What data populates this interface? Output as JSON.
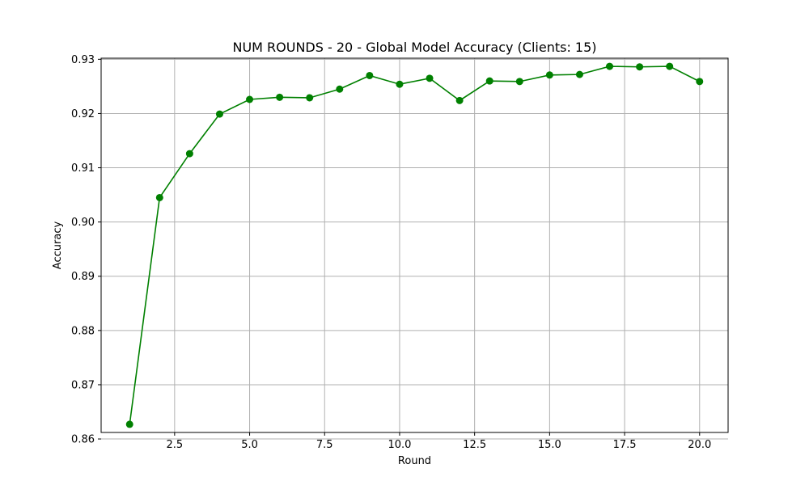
{
  "chart_data": {
    "type": "line",
    "title": "NUM ROUNDS - 20 - Global Model Accuracy (Clients: 15)",
    "xlabel": "Round",
    "ylabel": "Accuracy",
    "x": [
      1,
      2,
      3,
      4,
      5,
      6,
      7,
      8,
      9,
      10,
      11,
      12,
      13,
      14,
      15,
      16,
      17,
      18,
      19,
      20
    ],
    "series": [
      {
        "color": "#008000",
        "values": [
          0.8627,
          0.9045,
          0.9126,
          0.9199,
          0.9226,
          0.923,
          0.9229,
          0.9245,
          0.927,
          0.9254,
          0.9265,
          0.9224,
          0.926,
          0.9259,
          0.9271,
          0.9272,
          0.9287,
          0.9286,
          0.9287,
          0.9259
        ]
      }
    ],
    "xlim": [
      0.05,
      20.95
    ],
    "ylim": [
      0.8612,
      0.9302
    ],
    "xticks": [
      2.5,
      5.0,
      7.5,
      10.0,
      12.5,
      15.0,
      17.5,
      20.0
    ],
    "xtick_labels": [
      "2.5",
      "5.0",
      "7.5",
      "10.0",
      "12.5",
      "15.0",
      "17.5",
      "20.0"
    ],
    "yticks": [
      0.86,
      0.87,
      0.88,
      0.89,
      0.9,
      0.91,
      0.92,
      0.93
    ],
    "ytick_labels": [
      "0.86",
      "0.87",
      "0.88",
      "0.89",
      "0.90",
      "0.91",
      "0.92",
      "0.93"
    ],
    "grid": true
  }
}
